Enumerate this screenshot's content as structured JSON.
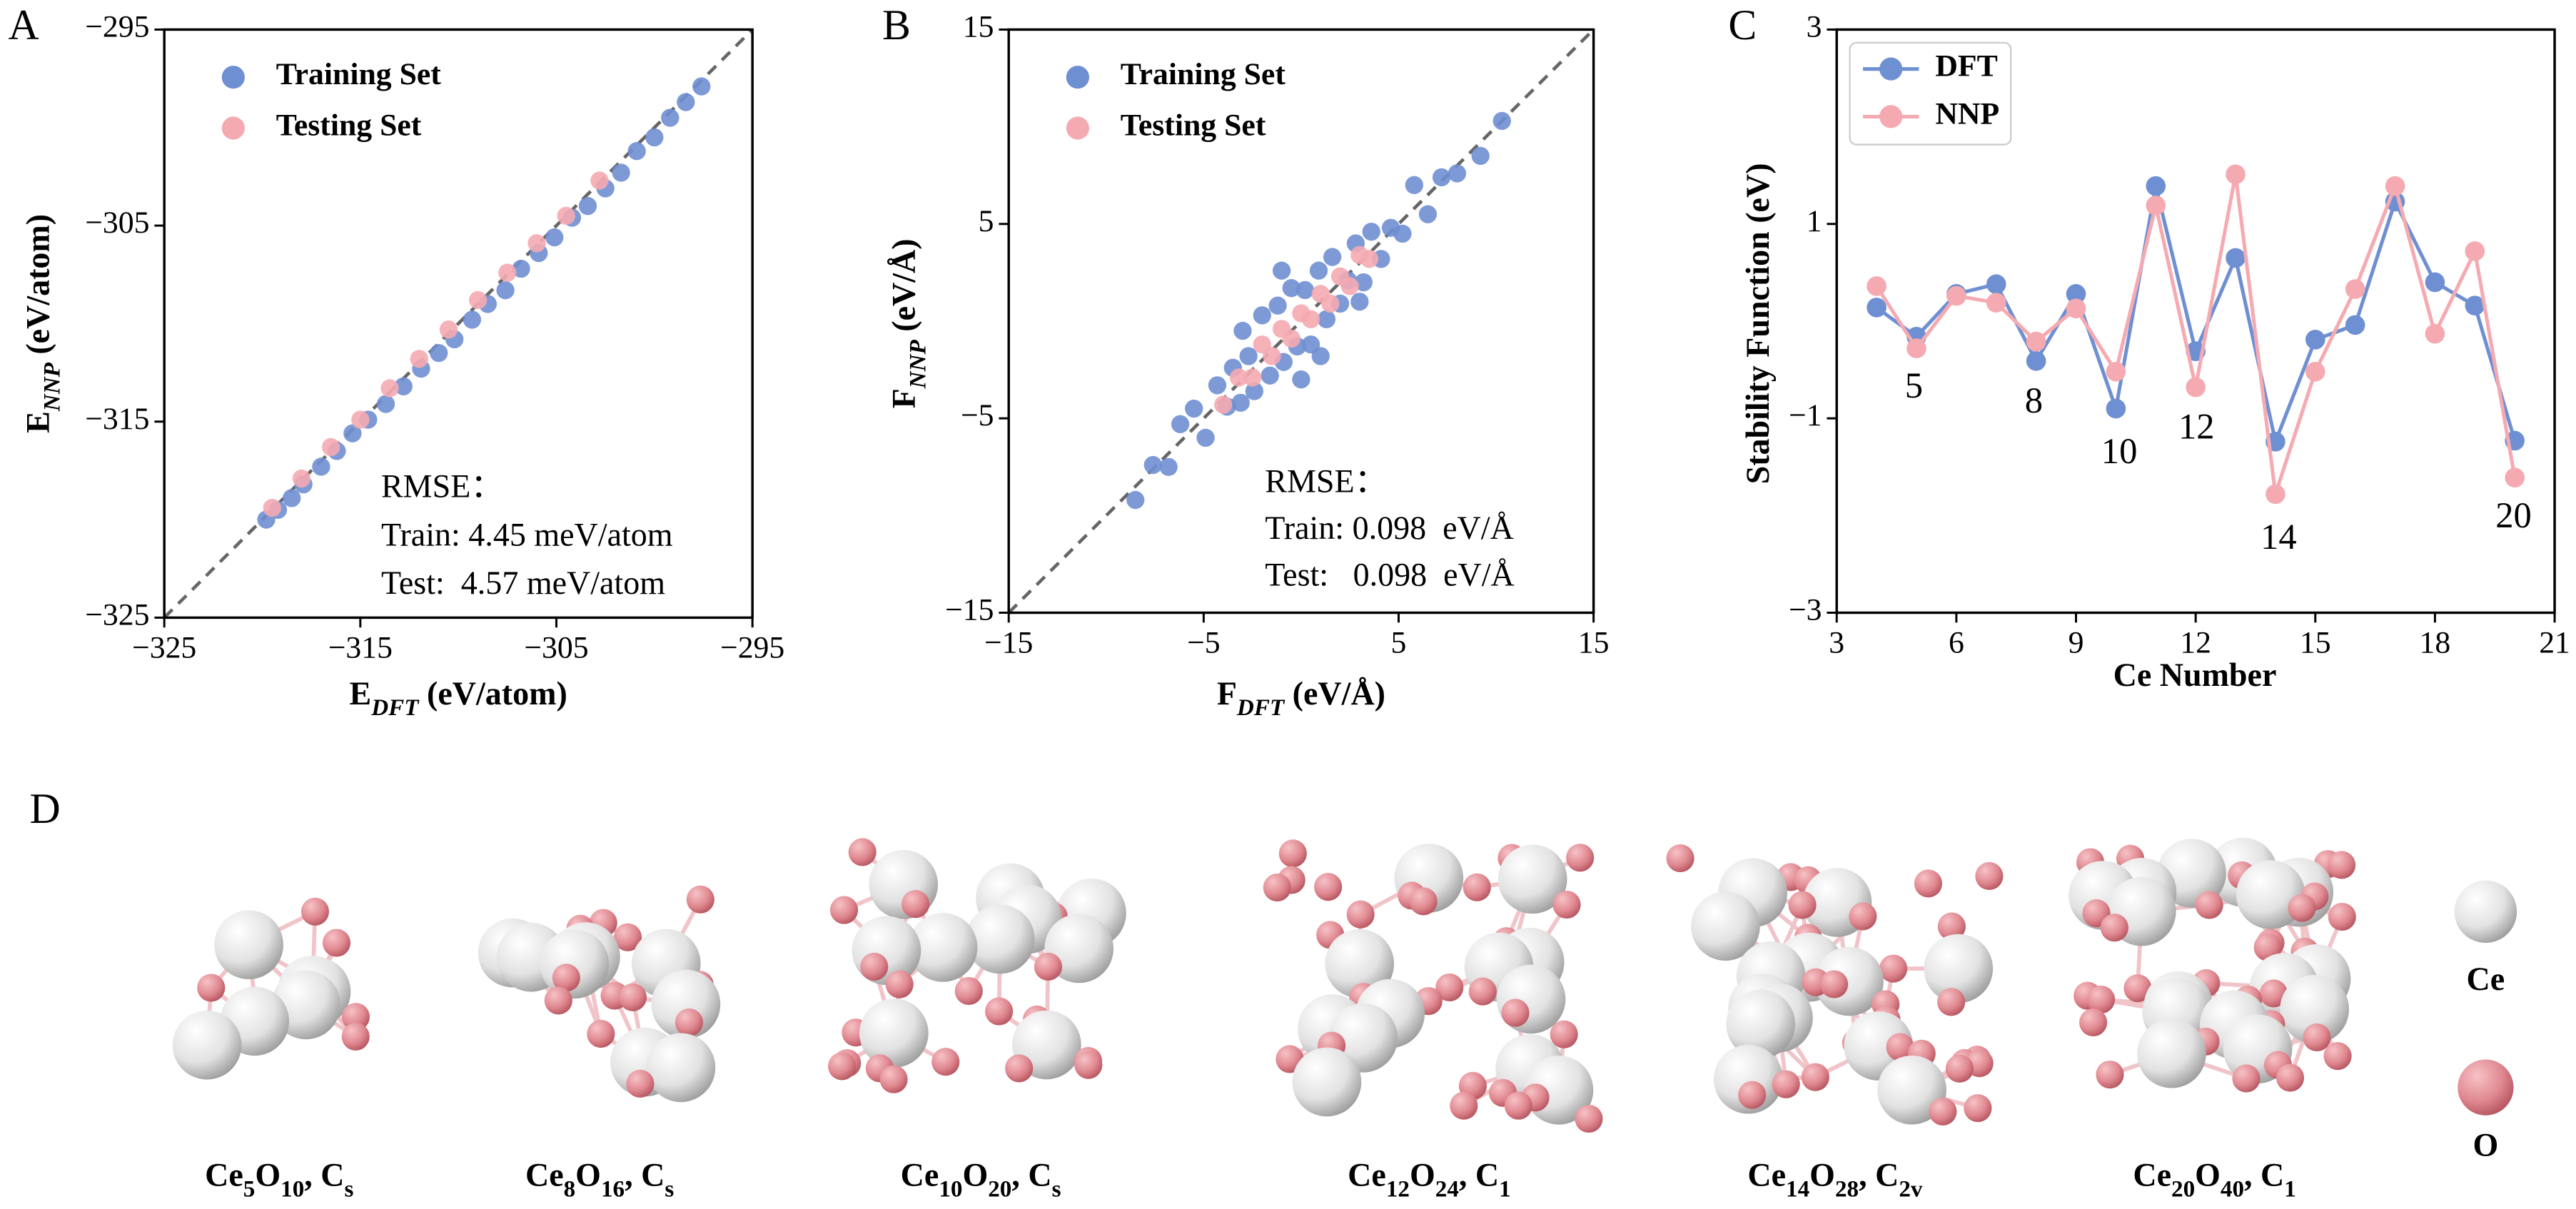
{
  "chart_data": [
    {
      "type": "scatter",
      "panel": "A",
      "x_label": [
        "E",
        "DFT",
        " (eV/atom)"
      ],
      "y_label": [
        "E",
        "NNP",
        " (eV/atom)"
      ],
      "xlim": [
        -325,
        -295
      ],
      "ylim": [
        -325,
        -295
      ],
      "xticks": [
        {
          "value": -325,
          "label": "−325"
        },
        {
          "value": -315,
          "label": "−315"
        },
        {
          "value": -305,
          "label": "−305"
        },
        {
          "value": -295,
          "label": "−295"
        }
      ],
      "yticks": [
        {
          "value": -325,
          "label": "−325"
        },
        {
          "value": -315,
          "label": "−315"
        },
        {
          "value": -305,
          "label": "−305"
        },
        {
          "value": -295,
          "label": "−295"
        }
      ],
      "legend": "upper left",
      "annotations": [
        "RMSE：",
        "Train: 4.45 meV/atom",
        "Test:  4.57 meV/atom"
      ],
      "series": [
        {
          "name": "Training Set",
          "color": "#6f8fd3",
          "x": [
            -319.8,
            -319.2,
            -318.5,
            -317.9,
            -317.0,
            -316.2,
            -315.4,
            -314.6,
            -313.7,
            -312.8,
            -311.9,
            -311.0,
            -310.2,
            -309.3,
            -308.5,
            -307.6,
            -306.8,
            -305.9,
            -305.1,
            -304.2,
            -303.4,
            -302.5,
            -301.7,
            -300.9,
            -300.0,
            -299.2,
            -298.4,
            -297.6
          ],
          "values": [
            -320.0,
            -319.5,
            -318.9,
            -318.2,
            -317.3,
            -316.5,
            -315.6,
            -314.9,
            -314.1,
            -313.2,
            -312.3,
            -311.5,
            -310.8,
            -309.8,
            -309.0,
            -308.3,
            -307.2,
            -306.4,
            -305.6,
            -304.6,
            -304.0,
            -303.1,
            -302.3,
            -301.2,
            -300.5,
            -299.5,
            -298.7,
            -297.9
          ]
        },
        {
          "name": "Testing Set",
          "color": "#f5aab1",
          "x": [
            -319.5,
            -318.0,
            -316.5,
            -315.0,
            -313.5,
            -312.0,
            -310.5,
            -309.0,
            -307.5,
            -306.0,
            -304.5,
            -302.8
          ],
          "values": [
            -319.4,
            -317.9,
            -316.3,
            -314.9,
            -313.3,
            -311.8,
            -310.3,
            -308.8,
            -307.4,
            -305.9,
            -304.5,
            -302.7
          ]
        }
      ]
    },
    {
      "type": "scatter",
      "panel": "B",
      "x_label": [
        "F",
        "DFT",
        " (eV/Å)"
      ],
      "y_label": [
        "F",
        "NNP",
        " (eV/Å)"
      ],
      "xlim": [
        -15,
        15
      ],
      "ylim": [
        -15,
        15
      ],
      "xticks": [
        {
          "value": -15,
          "label": "−15"
        },
        {
          "value": -5,
          "label": "−5"
        },
        5,
        15
      ],
      "yticks": [
        {
          "value": -15,
          "label": "−15"
        },
        {
          "value": -5,
          "label": "−5"
        },
        5,
        15
      ],
      "legend": "upper left",
      "annotations": [
        "RMSE：",
        "Train: 0.098  eV/Å",
        "Test:   0.098  eV/Å"
      ],
      "series": [
        {
          "name": "Training Set",
          "color": "#6f8fd3",
          "x": [
            -8.5,
            -7.6,
            -6.8,
            -6.2,
            -5.5,
            -4.9,
            -4.3,
            -3.8,
            -3.5,
            -3.1,
            -2.7,
            -2.4,
            -2.0,
            -1.6,
            -1.2,
            -0.9,
            -0.5,
            -0.2,
            0.2,
            0.5,
            0.9,
            1.3,
            1.6,
            2.0,
            2.4,
            2.8,
            3.2,
            3.6,
            4.1,
            4.6,
            5.2,
            5.8,
            6.5,
            7.2,
            8.0,
            9.2,
            10.3,
            -1.0,
            1.0,
            -3.0,
            3.0,
            0.0
          ],
          "values": [
            -9.2,
            -7.4,
            -7.5,
            -5.3,
            -4.5,
            -6.0,
            -3.3,
            -4.4,
            -2.4,
            -4.2,
            -1.8,
            -3.6,
            0.3,
            -2.8,
            0.8,
            -2.1,
            1.7,
            -1.3,
            1.6,
            -1.2,
            2.6,
            0.1,
            3.3,
            0.9,
            2.1,
            4.0,
            2.0,
            4.6,
            3.2,
            4.8,
            4.5,
            7.0,
            5.5,
            7.4,
            7.6,
            8.5,
            10.3,
            2.6,
            -1.8,
            -0.5,
            1.0,
            -3.0
          ]
        },
        {
          "name": "Testing Set",
          "color": "#f5aab1",
          "x": [
            -4.0,
            -3.2,
            -2.5,
            -2.0,
            -1.5,
            -1.0,
            -0.5,
            0.0,
            0.5,
            1.0,
            1.5,
            2.0,
            2.5,
            3.0,
            3.5
          ],
          "values": [
            -4.3,
            -2.9,
            -2.9,
            -1.2,
            -1.8,
            -0.4,
            -0.9,
            0.4,
            0.1,
            1.4,
            0.9,
            2.3,
            1.8,
            3.4,
            3.2
          ]
        }
      ]
    },
    {
      "type": "line",
      "panel": "C",
      "x_label": "Ce Number",
      "y_label": "Stability Function (eV)",
      "xlim": [
        3,
        21
      ],
      "ylim": [
        -3,
        3
      ],
      "xticks": [
        3,
        6,
        9,
        12,
        15,
        18,
        21
      ],
      "yticks": [
        {
          "value": -3,
          "label": "−3"
        },
        {
          "value": -1,
          "label": "−1"
        },
        1,
        3
      ],
      "legend": "upper left",
      "annotations": [
        "5",
        "8",
        "10",
        "12",
        "14",
        "20"
      ],
      "x": [
        4,
        5,
        6,
        7,
        8,
        9,
        10,
        11,
        12,
        13,
        14,
        15,
        16,
        17,
        18,
        19,
        20
      ],
      "series": [
        {
          "name": "DFT",
          "color": "#6f8fd3",
          "values": [
            0.14,
            -0.16,
            0.28,
            0.38,
            -0.41,
            0.28,
            -0.9,
            1.39,
            -0.31,
            0.65,
            -1.24,
            -0.19,
            -0.04,
            1.23,
            0.4,
            0.16,
            -1.23
          ]
        },
        {
          "name": "NNP",
          "color": "#f5aab1",
          "values": [
            0.36,
            -0.28,
            0.26,
            0.19,
            -0.21,
            0.13,
            -0.52,
            1.19,
            -0.68,
            1.51,
            -1.78,
            -0.52,
            0.33,
            1.39,
            -0.13,
            0.72,
            -1.61
          ]
        }
      ]
    }
  ],
  "structures": {
    "panel": "D",
    "items": [
      [
        "Ce",
        "5",
        "O",
        "10",
        ", C",
        "s"
      ],
      [
        "Ce",
        "8",
        "O",
        "16",
        ", C",
        "s"
      ],
      [
        "Ce",
        "10",
        "O",
        "20",
        ", C",
        "s"
      ],
      [
        "Ce",
        "12",
        "O",
        "24",
        ", C",
        "1"
      ],
      [
        "Ce",
        "14",
        "O",
        "28",
        ", C",
        "2v"
      ],
      [
        "Ce",
        "20",
        "O",
        "40",
        ", C",
        "1"
      ]
    ],
    "legend": [
      "Ce",
      "O"
    ]
  }
}
